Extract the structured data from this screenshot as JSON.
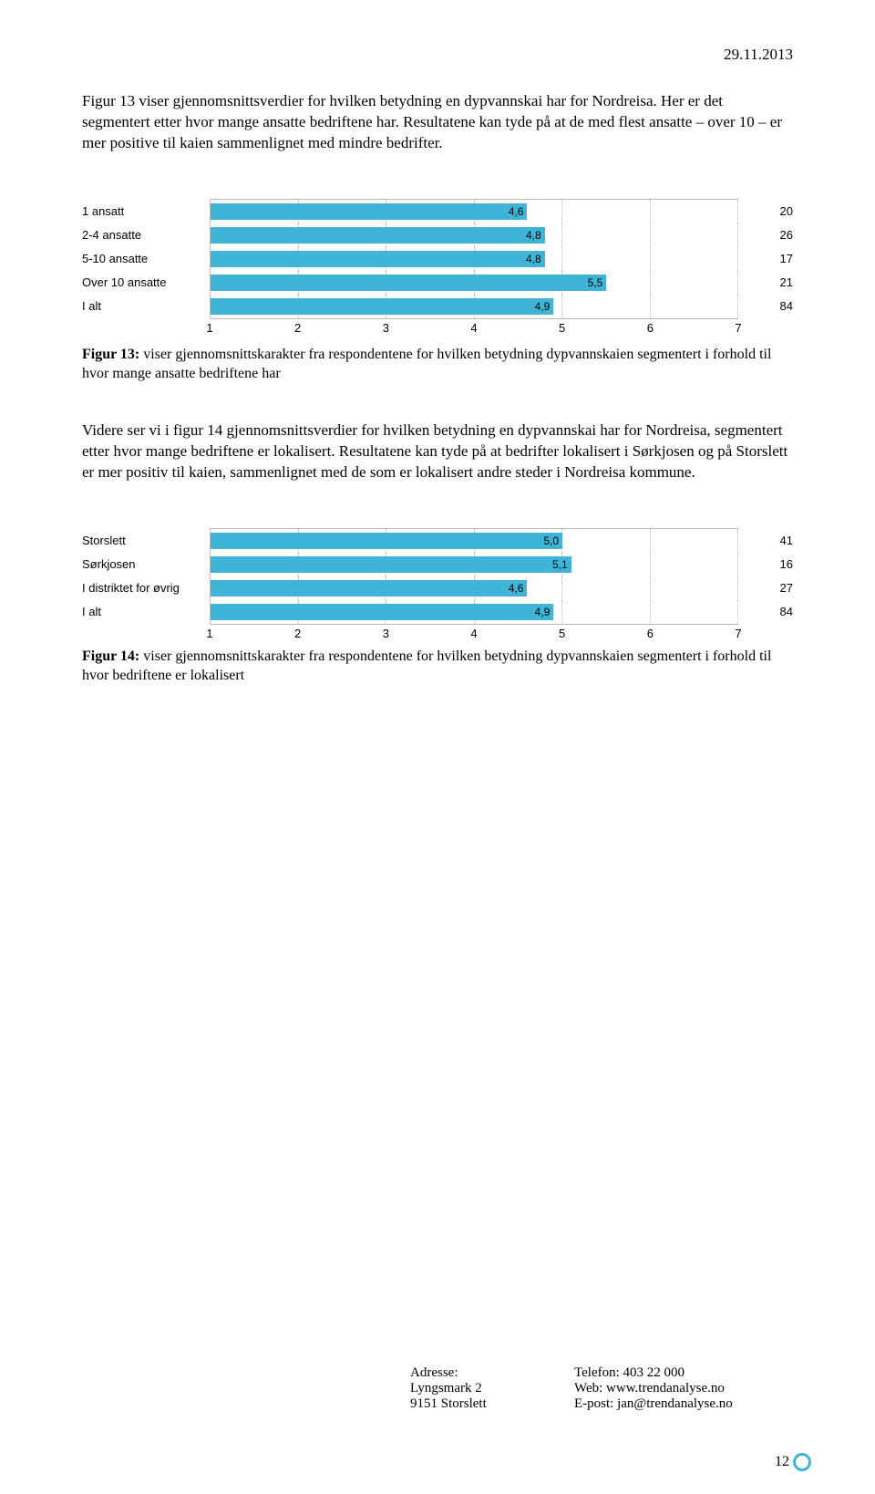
{
  "date": "29.11.2013",
  "para1": "Figur 13 viser gjennomsnittsverdier for hvilken betydning en dypvannskai har for Nordreisa. Her er det segmentert etter hvor mange ansatte bedriftene har. Resultatene kan tyde på at de med flest ansatte – over 10 – er mer positive til kaien sammenlignet med mindre bedrifter.",
  "chart1": {
    "type": "bar",
    "bar_color": "#3fb4d6",
    "background_color": "#ffffff",
    "grid_color": "#bbbbbb",
    "xlim_min": 1,
    "xlim_max": 7,
    "ticks": [
      "1",
      "2",
      "3",
      "4",
      "5",
      "6",
      "7"
    ],
    "rows": [
      {
        "label": "1 ansatt",
        "value": 4.6,
        "display": "4,6",
        "count": "20"
      },
      {
        "label": "2-4 ansatte",
        "value": 4.8,
        "display": "4,8",
        "count": "26"
      },
      {
        "label": "5-10 ansatte",
        "value": 4.8,
        "display": "4,8",
        "count": "17"
      },
      {
        "label": "Over 10 ansatte",
        "value": 5.5,
        "display": "5,5",
        "count": "21"
      },
      {
        "label": "I alt",
        "value": 4.9,
        "display": "4,9",
        "count": "84"
      }
    ]
  },
  "caption1_bold": "Figur 13:",
  "caption1_rest": " viser gjennomsnittskarakter fra respondentene for hvilken betydning dypvannskaien segmentert i forhold til hvor mange ansatte bedriftene har",
  "para2": "Videre ser vi i figur 14 gjennomsnittsverdier for hvilken betydning en dypvannskai har for Nordreisa, segmentert etter hvor mange bedriftene er lokalisert. Resultatene kan tyde på at bedrifter lokalisert i Sørkjosen og på Storslett er mer positiv til kaien, sammenlignet med de som er lokalisert andre steder i Nordreisa kommune.",
  "chart2": {
    "type": "bar",
    "bar_color": "#3fb4d6",
    "background_color": "#ffffff",
    "grid_color": "#bbbbbb",
    "xlim_min": 1,
    "xlim_max": 7,
    "ticks": [
      "1",
      "2",
      "3",
      "4",
      "5",
      "6",
      "7"
    ],
    "rows": [
      {
        "label": "Storslett",
        "value": 5.0,
        "display": "5,0",
        "count": "41"
      },
      {
        "label": "Sørkjosen",
        "value": 5.1,
        "display": "5,1",
        "count": "16"
      },
      {
        "label": "I distriktet for øvrig",
        "value": 4.6,
        "display": "4,6",
        "count": "27"
      },
      {
        "label": "I alt",
        "value": 4.9,
        "display": "4,9",
        "count": "84"
      }
    ]
  },
  "caption2_bold": "Figur 14:",
  "caption2_rest": " viser gjennomsnittskarakter fra respondentene for hvilken betydning dypvannskaien segmentert i forhold til hvor bedriftene er lokalisert",
  "footer": {
    "addr_label": "Adresse:",
    "addr_l1": "Lyngsmark 2",
    "addr_l2": "9151 Storslett",
    "tel": "Telefon: 403 22 000",
    "web": "Web: www.trendanalyse.no",
    "email": "E-post: jan@trendanalyse.no"
  },
  "pagenum": "12"
}
